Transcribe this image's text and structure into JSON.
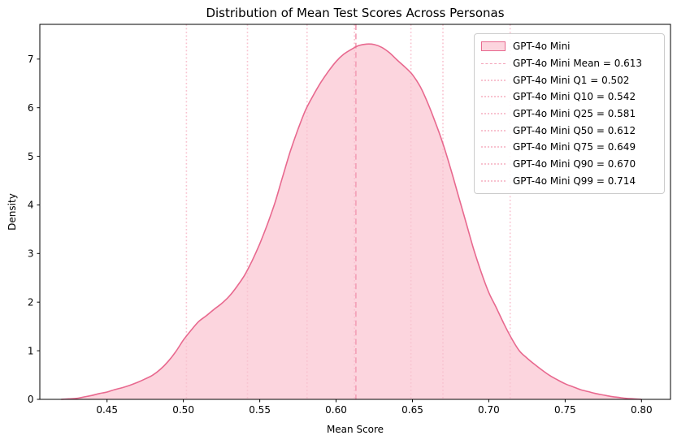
{
  "title": "Distribution of Mean Test Scores Across Personas",
  "xlabel": "Mean Score",
  "ylabel": "Density",
  "legend": {
    "entries": [
      {
        "label": "GPT-4o Mini",
        "type": "patch"
      },
      {
        "label": "GPT-4o Mini Mean = 0.613",
        "type": "dashed"
      },
      {
        "label": "GPT-4o Mini Q1 = 0.502",
        "type": "dotted"
      },
      {
        "label": "GPT-4o Mini Q10 = 0.542",
        "type": "dotted"
      },
      {
        "label": "GPT-4o Mini Q25 = 0.581",
        "type": "dotted"
      },
      {
        "label": "GPT-4o Mini Q50 = 0.612",
        "type": "dotted"
      },
      {
        "label": "GPT-4o Mini Q75 = 0.649",
        "type": "dotted"
      },
      {
        "label": "GPT-4o Mini Q90 = 0.670",
        "type": "dotted"
      },
      {
        "label": "GPT-4o Mini Q99 = 0.714",
        "type": "dotted"
      }
    ]
  },
  "chart_data": {
    "type": "area",
    "series_name": "GPT-4o Mini",
    "title": "Distribution of Mean Test Scores Across Personas",
    "xlabel": "Mean Score",
    "ylabel": "Density",
    "xlim": [
      0.406,
      0.819
    ],
    "ylim": [
      0,
      7.715
    ],
    "x_ticks": [
      0.45,
      0.5,
      0.55,
      0.6,
      0.65,
      0.7,
      0.75,
      0.8
    ],
    "y_ticks": [
      0,
      1,
      2,
      3,
      4,
      5,
      6,
      7
    ],
    "grid": false,
    "legend_position": "upper right",
    "mean": 0.613,
    "quantiles": [
      {
        "name": "Q1",
        "value": 0.502
      },
      {
        "name": "Q10",
        "value": 0.542
      },
      {
        "name": "Q25",
        "value": 0.581
      },
      {
        "name": "Q50",
        "value": 0.612
      },
      {
        "name": "Q75",
        "value": 0.649
      },
      {
        "name": "Q90",
        "value": 0.67
      },
      {
        "name": "Q99",
        "value": 0.714
      }
    ],
    "peak": {
      "x": 0.621,
      "density": 7.31
    },
    "kde_points": [
      [
        0.42,
        0.0
      ],
      [
        0.425,
        0.01
      ],
      [
        0.43,
        0.02
      ],
      [
        0.435,
        0.05
      ],
      [
        0.44,
        0.08
      ],
      [
        0.445,
        0.12
      ],
      [
        0.45,
        0.15
      ],
      [
        0.455,
        0.2
      ],
      [
        0.46,
        0.24
      ],
      [
        0.465,
        0.29
      ],
      [
        0.47,
        0.35
      ],
      [
        0.475,
        0.42
      ],
      [
        0.48,
        0.5
      ],
      [
        0.485,
        0.62
      ],
      [
        0.49,
        0.78
      ],
      [
        0.495,
        0.98
      ],
      [
        0.5,
        1.22
      ],
      [
        0.505,
        1.42
      ],
      [
        0.51,
        1.6
      ],
      [
        0.515,
        1.72
      ],
      [
        0.52,
        1.85
      ],
      [
        0.525,
        1.97
      ],
      [
        0.53,
        2.12
      ],
      [
        0.535,
        2.32
      ],
      [
        0.54,
        2.55
      ],
      [
        0.545,
        2.85
      ],
      [
        0.55,
        3.2
      ],
      [
        0.555,
        3.6
      ],
      [
        0.56,
        4.05
      ],
      [
        0.565,
        4.58
      ],
      [
        0.57,
        5.1
      ],
      [
        0.575,
        5.55
      ],
      [
        0.58,
        5.95
      ],
      [
        0.585,
        6.25
      ],
      [
        0.59,
        6.52
      ],
      [
        0.595,
        6.75
      ],
      [
        0.6,
        6.95
      ],
      [
        0.605,
        7.1
      ],
      [
        0.61,
        7.2
      ],
      [
        0.615,
        7.28
      ],
      [
        0.62,
        7.31
      ],
      [
        0.625,
        7.3
      ],
      [
        0.63,
        7.24
      ],
      [
        0.635,
        7.13
      ],
      [
        0.64,
        6.98
      ],
      [
        0.645,
        6.84
      ],
      [
        0.65,
        6.68
      ],
      [
        0.655,
        6.44
      ],
      [
        0.66,
        6.1
      ],
      [
        0.665,
        5.7
      ],
      [
        0.67,
        5.26
      ],
      [
        0.675,
        4.75
      ],
      [
        0.68,
        4.2
      ],
      [
        0.685,
        3.65
      ],
      [
        0.69,
        3.1
      ],
      [
        0.695,
        2.62
      ],
      [
        0.7,
        2.2
      ],
      [
        0.705,
        1.88
      ],
      [
        0.71,
        1.55
      ],
      [
        0.715,
        1.25
      ],
      [
        0.72,
        1.0
      ],
      [
        0.725,
        0.85
      ],
      [
        0.73,
        0.72
      ],
      [
        0.735,
        0.6
      ],
      [
        0.74,
        0.49
      ],
      [
        0.745,
        0.4
      ],
      [
        0.75,
        0.32
      ],
      [
        0.755,
        0.26
      ],
      [
        0.76,
        0.2
      ],
      [
        0.765,
        0.16
      ],
      [
        0.77,
        0.12
      ],
      [
        0.775,
        0.09
      ],
      [
        0.78,
        0.06
      ],
      [
        0.785,
        0.04
      ],
      [
        0.79,
        0.02
      ],
      [
        0.795,
        0.01
      ],
      [
        0.8,
        0.0
      ]
    ],
    "colors": {
      "line": "#e8698f",
      "fill": "#fcd5de",
      "mean_line": "#f3a2b8",
      "quantile_line": "#f8c3d0",
      "spine": "#000000",
      "text": "#000000",
      "legend_border": "#cccccc"
    }
  }
}
